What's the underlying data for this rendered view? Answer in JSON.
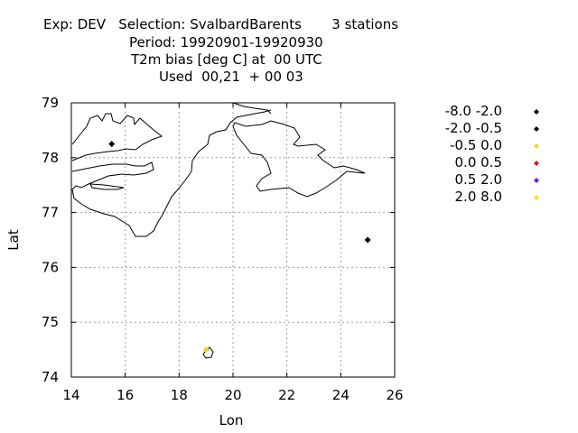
{
  "header": {
    "line1": "Exp: DEV   Selection: SvalbardBarents       3 stations",
    "line2": "Period: 19920901-19920930",
    "line3": "T2m bias [deg C] at  00 UTC",
    "line4": "Used  00,21  + 00 03"
  },
  "axes": {
    "xlabel": "Lon",
    "ylabel": "Lat",
    "xlim": [
      14,
      26
    ],
    "ylim": [
      74,
      79
    ],
    "xticks": [
      14,
      16,
      18,
      20,
      22,
      24,
      26
    ],
    "yticks": [
      74,
      75,
      76,
      77,
      78,
      79
    ],
    "grid": true
  },
  "legend": {
    "placement": "right",
    "entries": [
      {
        "label": "-8.0 -2.0",
        "color": "#000000"
      },
      {
        "label": "-2.0 -0.5",
        "color": "#000000"
      },
      {
        "label": "-0.5 0.0",
        "color": "#f2d230"
      },
      {
        "label": "0.0 0.5",
        "color": "#c81e1e"
      },
      {
        "label": "0.5 2.0",
        "color": "#7a1fc8"
      },
      {
        "label": "2.0 8.0",
        "color": "#f2e030"
      }
    ]
  },
  "chart_data": {
    "type": "scatter",
    "stations": [
      {
        "lon": 15.5,
        "lat": 78.25,
        "color": "#000000"
      },
      {
        "lon": 25.0,
        "lat": 76.5,
        "color": "#000000"
      },
      {
        "lon": 19.0,
        "lat": 74.5,
        "color": "#f2d230"
      }
    ]
  }
}
